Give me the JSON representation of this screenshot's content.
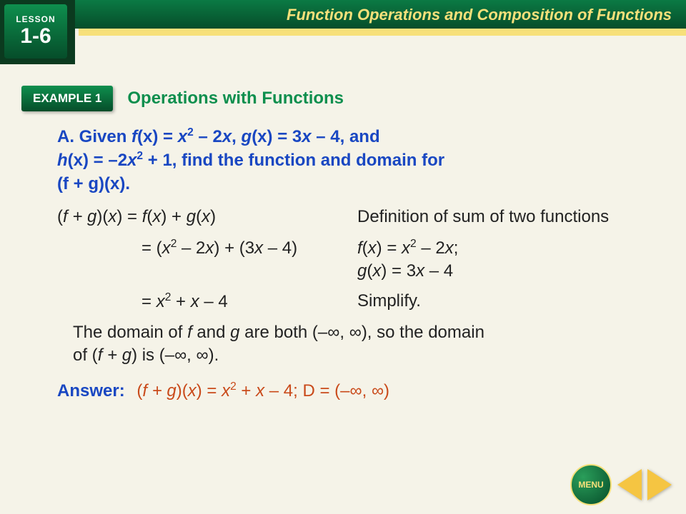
{
  "header": {
    "title": "Function Operations and Composition of Functions"
  },
  "lesson": {
    "label": "LESSON",
    "number": "1-6"
  },
  "example": {
    "badge": "EXAMPLE 1",
    "title": "Operations with Functions"
  },
  "problem": {
    "part": "A.",
    "textA": " Given ",
    "f_label": "f",
    "of_x": "(x)",
    "eq1": " = ",
    "f_expr_a": "x",
    "f_expr_b": " – 2",
    "f_expr_c": "x",
    "comma1": ", ",
    "g_label": "g",
    "g_expr": " = 3",
    "g_expr2": "x",
    "g_expr3": " – 4, and",
    "line2a": "h",
    "line2b": "(x) = –2",
    "line2c": "x",
    "line2d": " + 1, find the function and domain for",
    "line3": "(f + g)(x)."
  },
  "steps": [
    {
      "left_a": "(",
      "left_b": "f + g",
      "left_c": ")(",
      "left_d": "x",
      "left_e": ") = ",
      "left_f": "f",
      "left_g": "(",
      "left_h": "x",
      "left_i": ") + ",
      "left_j": "g",
      "left_k": "(",
      "left_l": "x",
      "left_m": ")",
      "right": "Definition of sum of two functions"
    },
    {
      "left_a": "= (",
      "left_b": "x",
      "left_c": " – 2",
      "left_d": "x",
      "left_e": ") + (3",
      "left_f": "x",
      "left_g": " – 4)",
      "right_a": "f",
      "right_b": "(",
      "right_c": "x",
      "right_d": ") = ",
      "right_e": "x",
      "right_f": " – 2",
      "right_g": "x",
      "right_h": ";",
      "right_i": "g",
      "right_j": "(",
      "right_k": "x",
      "right_l": ") = 3",
      "right_m": "x",
      "right_n": " – 4"
    },
    {
      "left_a": "= ",
      "left_b": "x",
      "left_c": " + ",
      "left_d": "x",
      "left_e": " – 4",
      "right": "Simplify."
    }
  ],
  "domain": {
    "a": "The domain of ",
    "b": "f",
    "c": " and ",
    "d": "g",
    "e": " are both ",
    "interval1": "(–∞, ∞),",
    "f": " so the domain",
    "g": "of (",
    "h": "f + g",
    "i": ") is ",
    "interval2": "(–∞, ∞)."
  },
  "answer": {
    "label": "Answer:",
    "m1": "(",
    "m2": "f  +  g",
    "m3": ")(",
    "m4": "x",
    "m5": ")  =  ",
    "m6": "x",
    "m7": "  +  ",
    "m8": "x",
    "m9": "  –  4;  D = (–∞, ∞)"
  },
  "nav": {
    "menu": "MENU"
  }
}
